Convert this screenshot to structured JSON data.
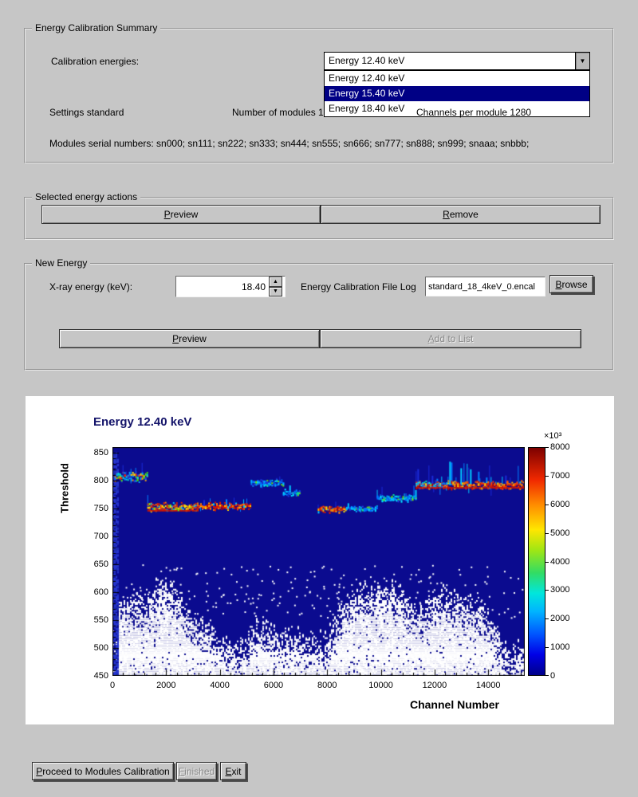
{
  "summary": {
    "title": "Energy Calibration Summary",
    "calibration_energies_label": "Calibration energies:",
    "combo": {
      "value": "Energy 12.40 keV",
      "options": [
        "Energy 12.40 keV",
        "Energy 15.40 keV",
        "Energy 18.40 keV"
      ],
      "highlighted_index": 1
    },
    "settings_standard": "Settings standard",
    "number_of_modules": "Number of modules 12",
    "channels_per_module": "Channels per module 1280",
    "serial_numbers": "Modules serial numbers: sn000; sn111; sn222; sn333; sn444; sn555; sn666; sn777; sn888; sn999; snaaa; snbbb;"
  },
  "selected_actions": {
    "title": "Selected energy actions",
    "preview": {
      "label": "Preview",
      "mnemonic": 0
    },
    "remove": {
      "label": "Remove",
      "mnemonic": 0
    }
  },
  "new_energy": {
    "title": "New Energy",
    "xray_label": "X-ray energy (keV):",
    "energy_value": "18.40",
    "file_log_label": "Energy Calibration File Log",
    "file_value": "standard_18_4keV_0.encal",
    "browse": {
      "label": "Browse",
      "mnemonic": 0
    },
    "preview": {
      "label": "Preview",
      "mnemonic": 0
    },
    "add": {
      "label": "Add to List",
      "mnemonic": 0,
      "disabled": true
    }
  },
  "footer": {
    "proceed": {
      "label": "Proceed to Modules Calibration",
      "mnemonic": 0
    },
    "finished": {
      "label": "Finished",
      "mnemonic": 0,
      "disabled": true
    },
    "exit": {
      "label": "Exit",
      "mnemonic": 0
    }
  },
  "chart_data": {
    "type": "heatmap",
    "title": "Energy 12.40 keV",
    "xlabel": "Channel Number",
    "ylabel": "Threshold",
    "x_range": [
      0,
      15360
    ],
    "y_range": [
      450,
      860
    ],
    "x_ticks": [
      0,
      2000,
      4000,
      6000,
      8000,
      10000,
      12000,
      14000
    ],
    "y_ticks": [
      450,
      500,
      550,
      600,
      650,
      700,
      750,
      800,
      850
    ],
    "background_color": "#0b0b8f",
    "colorbar": {
      "min": 0,
      "max": 8000,
      "ticks": [
        0,
        1000,
        2000,
        3000,
        4000,
        5000,
        6000,
        7000,
        8000
      ],
      "exponent": "×10³",
      "stops": [
        {
          "pos": 0.0,
          "color": "#00008a"
        },
        {
          "pos": 0.09,
          "color": "#0000e6"
        },
        {
          "pos": 0.18,
          "color": "#0055ff"
        },
        {
          "pos": 0.28,
          "color": "#00b4ff"
        },
        {
          "pos": 0.36,
          "color": "#00e6dc"
        },
        {
          "pos": 0.45,
          "color": "#32dc64"
        },
        {
          "pos": 0.55,
          "color": "#a0e614"
        },
        {
          "pos": 0.64,
          "color": "#ffe600"
        },
        {
          "pos": 0.75,
          "color": "#ff8c00"
        },
        {
          "pos": 0.86,
          "color": "#f02800"
        },
        {
          "pos": 1.0,
          "color": "#7d0000"
        }
      ]
    },
    "spike_colors": [
      [
        "#1a2ad8",
        0.5
      ],
      [
        "#0080ff",
        0.3
      ],
      [
        "#00ccff",
        0.2
      ]
    ],
    "styles": {
      "hot": [
        [
          "#d81600",
          0.3
        ],
        [
          "#ff3c00",
          0.2
        ],
        [
          "#ff7a00",
          0.16
        ],
        [
          "#ffb000",
          0.12
        ],
        [
          "#ffe400",
          0.1
        ],
        [
          "#b00000",
          0.07
        ],
        [
          "#00c8ff",
          0.05
        ]
      ],
      "cold": [
        [
          "#0070ff",
          0.34
        ],
        [
          "#00b4ff",
          0.25
        ],
        [
          "#00e4ff",
          0.15
        ],
        [
          "#2038e0",
          0.12
        ],
        [
          "#00e8a0",
          0.08
        ],
        [
          "#70f000",
          0.06
        ]
      ],
      "mixed": [
        [
          "#ff2800",
          0.14
        ],
        [
          "#ff9000",
          0.12
        ],
        [
          "#ffe400",
          0.18
        ],
        [
          "#50e800",
          0.16
        ],
        [
          "#00d8d0",
          0.16
        ],
        [
          "#00a0ff",
          0.14
        ],
        [
          "#2038e0",
          0.1
        ]
      ],
      "hotmix": [
        [
          "#e02000",
          0.22
        ],
        [
          "#ff7a00",
          0.16
        ],
        [
          "#ffe400",
          0.22
        ],
        [
          "#80e800",
          0.12
        ],
        [
          "#00c8ff",
          0.14
        ],
        [
          "#ff3c00",
          0.14
        ]
      ]
    },
    "bands": [
      {
        "x0": 80,
        "x1": 1300,
        "thr": 807,
        "spread": 10,
        "style": "mixed",
        "spike_p": 0.3,
        "spike_len": 26
      },
      {
        "x0": 1300,
        "x1": 3150,
        "thr": 753,
        "spread": 8,
        "style": "hotmix",
        "redline": 746,
        "spike_p": 0.2,
        "spike_len": 20
      },
      {
        "x0": 3150,
        "x1": 5150,
        "thr": 754,
        "spread": 8,
        "style": "hot",
        "spike_p": 0.16,
        "spike_len": 16
      },
      {
        "x0": 5150,
        "x1": 6350,
        "thr": 796,
        "spread": 7,
        "style": "cold",
        "spike_p": 0.3,
        "spike_len": 18
      },
      {
        "x0": 6350,
        "x1": 6980,
        "thr": 778,
        "spread": 6,
        "style": "cold",
        "spike_p": 0.22,
        "spike_len": 12
      },
      {
        "x0": 7650,
        "x1": 8700,
        "thr": 749,
        "spread": 7,
        "style": "hot",
        "spike_p": 0.2,
        "spike_len": 15
      },
      {
        "x0": 8700,
        "x1": 9850,
        "thr": 750,
        "spread": 6,
        "style": "cold",
        "spike_p": 0.2,
        "spike_len": 13
      },
      {
        "x0": 9850,
        "x1": 11300,
        "thr": 768,
        "spread": 7,
        "style": "cold",
        "spike_p": 0.32,
        "spike_len": 20
      },
      {
        "x0": 11300,
        "x1": 15360,
        "thr": 792,
        "spread": 8,
        "style": "hot",
        "cold_head": 1100,
        "redline": 787,
        "spike_p": 0.5,
        "spike_len": 38
      }
    ]
  }
}
